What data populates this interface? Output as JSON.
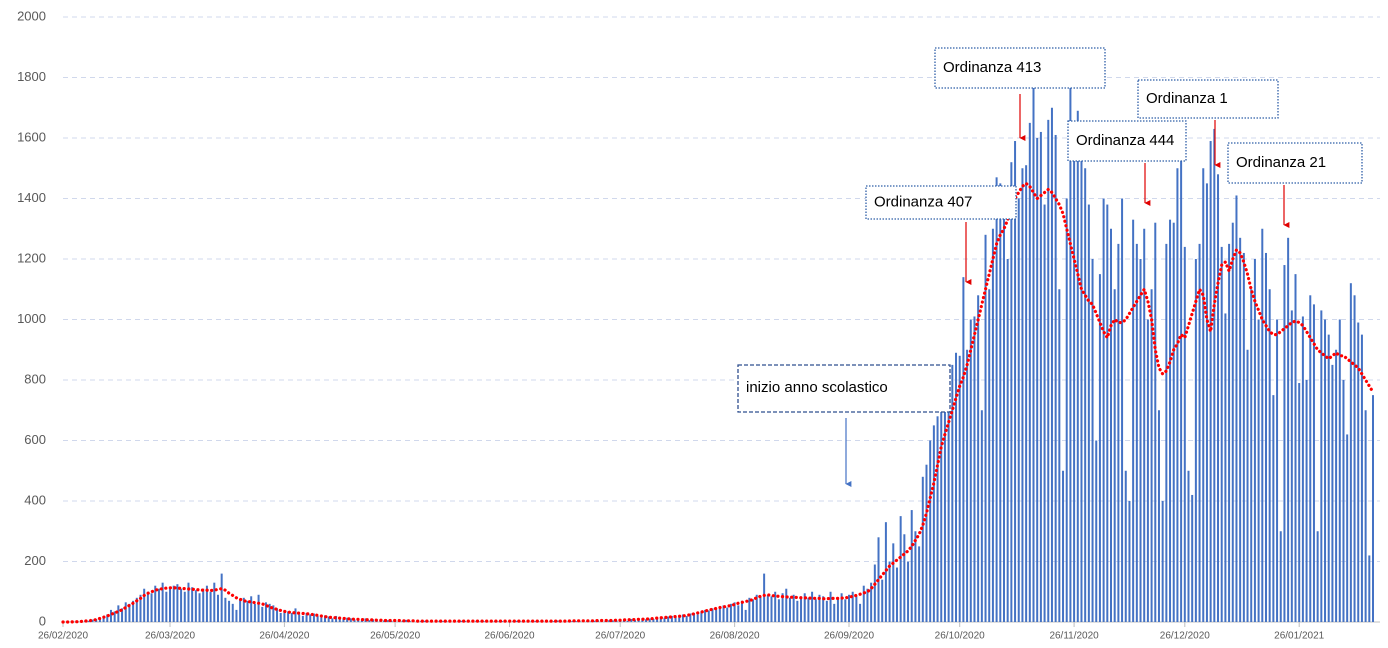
{
  "chart_data": {
    "type": "bar",
    "categories": [
      "26/02/2020",
      null,
      null,
      null,
      null,
      null,
      null,
      null,
      null,
      null,
      null,
      null,
      null,
      null,
      null,
      null,
      null,
      null,
      null,
      null,
      null,
      null,
      null,
      null,
      null,
      null,
      null,
      null,
      null,
      "26/03/2020",
      null,
      null,
      null,
      null,
      null,
      null,
      null,
      null,
      null,
      null,
      null,
      null,
      null,
      null,
      null,
      null,
      null,
      null,
      null,
      null,
      null,
      null,
      null,
      null,
      null,
      null,
      null,
      null,
      null,
      null,
      "26/04/2020",
      null,
      null,
      null,
      null,
      null,
      null,
      null,
      null,
      null,
      null,
      null,
      null,
      null,
      null,
      null,
      null,
      null,
      null,
      null,
      null,
      null,
      null,
      null,
      null,
      null,
      null,
      null,
      null,
      null,
      "26/05/2020",
      null,
      null,
      null,
      null,
      null,
      null,
      null,
      null,
      null,
      null,
      null,
      null,
      null,
      null,
      null,
      null,
      null,
      null,
      null,
      null,
      null,
      null,
      null,
      null,
      null,
      null,
      null,
      null,
      null,
      null,
      "26/06/2020",
      null,
      null,
      null,
      null,
      null,
      null,
      null,
      null,
      null,
      null,
      null,
      null,
      null,
      null,
      null,
      null,
      null,
      null,
      null,
      null,
      null,
      null,
      null,
      null,
      null,
      null,
      null,
      null,
      null,
      "26/07/2020",
      null,
      null,
      null,
      null,
      null,
      null,
      null,
      null,
      null,
      null,
      null,
      null,
      null,
      null,
      null,
      null,
      null,
      null,
      null,
      null,
      null,
      null,
      null,
      null,
      null,
      null,
      null,
      null,
      null,
      null,
      "26/08/2020",
      null,
      null,
      null,
      null,
      null,
      null,
      null,
      null,
      null,
      null,
      null,
      null,
      null,
      null,
      null,
      null,
      null,
      null,
      null,
      null,
      null,
      null,
      null,
      null,
      null,
      null,
      null,
      null,
      null,
      null,
      "26/09/2020",
      null,
      null,
      null,
      null,
      null,
      null,
      null,
      null,
      null,
      null,
      null,
      null,
      null,
      null,
      null,
      null,
      null,
      null,
      null,
      null,
      null,
      null,
      null,
      null,
      null,
      null,
      null,
      null,
      null,
      "26/10/2020",
      null,
      null,
      null,
      null,
      null,
      null,
      null,
      null,
      null,
      null,
      null,
      null,
      null,
      null,
      null,
      null,
      null,
      null,
      null,
      null,
      null,
      null,
      null,
      null,
      null,
      null,
      null,
      null,
      null,
      null,
      "26/11/2020",
      null,
      null,
      null,
      null,
      null,
      null,
      null,
      null,
      null,
      null,
      null,
      null,
      null,
      null,
      null,
      null,
      null,
      null,
      null,
      null,
      null,
      null,
      null,
      null,
      null,
      null,
      null,
      null,
      null,
      "26/12/2020",
      null,
      null,
      null,
      null,
      null,
      null,
      null,
      null,
      null,
      null,
      null,
      null,
      null,
      null,
      null,
      null,
      null,
      null,
      null,
      null,
      null,
      null,
      null,
      null,
      null,
      null,
      null,
      null,
      null,
      null,
      "26/01/2021",
      null,
      null,
      null,
      null,
      null,
      null,
      null,
      null,
      null,
      null,
      null,
      null,
      null,
      null,
      null,
      null,
      null,
      null,
      null,
      null
    ],
    "series": [
      {
        "type": "bar",
        "color": "#4472c4",
        "values": [
          0,
          0,
          0,
          1,
          2,
          3,
          5,
          4,
          8,
          10,
          15,
          20,
          25,
          40,
          35,
          55,
          45,
          65,
          60,
          70,
          80,
          90,
          110,
          100,
          95,
          120,
          110,
          130,
          100,
          115,
          120,
          125,
          110,
          100,
          130,
          115,
          105,
          95,
          110,
          120,
          100,
          130,
          90,
          160,
          80,
          70,
          60,
          40,
          75,
          80,
          70,
          85,
          60,
          90,
          50,
          65,
          60,
          55,
          45,
          30,
          40,
          35,
          30,
          45,
          25,
          20,
          30,
          25,
          28,
          20,
          15,
          22,
          18,
          12,
          20,
          15,
          10,
          14,
          12,
          8,
          10,
          8,
          12,
          6,
          9,
          7,
          8,
          5,
          6,
          4,
          6,
          5,
          4,
          7,
          3,
          5,
          4,
          3,
          4,
          2,
          3,
          2,
          4,
          3,
          2,
          5,
          3,
          2,
          4,
          3,
          2,
          3,
          4,
          2,
          3,
          2,
          5,
          3,
          2,
          3,
          3,
          2,
          3,
          4,
          2,
          3,
          2,
          4,
          3,
          2,
          4,
          3,
          2,
          3,
          5,
          2,
          3,
          4,
          3,
          3,
          3,
          4,
          3,
          2,
          4,
          5,
          3,
          4,
          6,
          5,
          5,
          8,
          6,
          4,
          10,
          7,
          8,
          12,
          9,
          11,
          10,
          12,
          15,
          14,
          18,
          20,
          16,
          22,
          25,
          20,
          28,
          30,
          25,
          35,
          40,
          38,
          45,
          42,
          50,
          55,
          48,
          60,
          65,
          55,
          70,
          40,
          80,
          75,
          90,
          85,
          160,
          90,
          85,
          100,
          75,
          95,
          110,
          80,
          90,
          70,
          85,
          95,
          80,
          100,
          75,
          90,
          85,
          70,
          100,
          60,
          80,
          95,
          75,
          90,
          100,
          85,
          60,
          120,
          110,
          130,
          190,
          280,
          140,
          330,
          200,
          260,
          180,
          350,
          290,
          200,
          370,
          300,
          250,
          480,
          520,
          600,
          650,
          680,
          720,
          700,
          750,
          850,
          890,
          880,
          1140,
          900,
          1000,
          1010,
          1080,
          700,
          1280,
          1100,
          1300,
          1470,
          1450,
          1350,
          1200,
          1520,
          1590,
          1400,
          1500,
          1510,
          1650,
          1850,
          1600,
          1620,
          1380,
          1660,
          1700,
          1610,
          1100,
          500,
          1400,
          1880,
          1610,
          1690,
          1650,
          1500,
          1380,
          1200,
          600,
          1150,
          1400,
          1380,
          1300,
          1100,
          1250,
          1400,
          500,
          400,
          1330,
          1250,
          1200,
          1300,
          1000,
          1100,
          1320,
          700,
          400,
          1250,
          1330,
          1320,
          1500,
          1560,
          1240,
          500,
          420,
          1200,
          1250,
          1500,
          1450,
          1590,
          1630,
          1480,
          1240,
          1020,
          1250,
          1320,
          1410,
          1270,
          1220,
          900,
          1100,
          1200,
          1000,
          1300,
          1220,
          1100,
          750,
          1000,
          300,
          1180,
          1270,
          1030,
          1150,
          790,
          1010,
          800,
          1080,
          1050,
          300,
          1030,
          1000,
          950,
          850,
          900,
          1000,
          800,
          620,
          1120,
          1080,
          990,
          950,
          700,
          220,
          750
        ]
      },
      {
        "type": "line",
        "color": "#ff0000",
        "values": [
          0,
          0,
          0,
          1,
          1,
          2,
          3,
          4,
          6,
          8,
          12,
          16,
          20,
          25,
          30,
          35,
          40,
          48,
          55,
          62,
          70,
          78,
          88,
          95,
          100,
          105,
          108,
          110,
          112,
          113,
          113,
          112,
          111,
          110,
          109,
          108,
          107,
          106,
          105,
          105,
          104,
          105,
          108,
          110,
          105,
          95,
          88,
          80,
          75,
          70,
          68,
          66,
          64,
          62,
          60,
          55,
          50,
          45,
          42,
          38,
          35,
          33,
          31,
          30,
          29,
          28,
          27,
          26,
          24,
          22,
          20,
          18,
          16,
          15,
          14,
          13,
          12,
          11,
          10,
          9,
          9,
          8,
          8,
          7,
          7,
          6,
          6,
          5,
          5,
          5,
          5,
          5,
          4,
          4,
          4,
          4,
          3,
          3,
          3,
          3,
          3,
          3,
          3,
          3,
          3,
          3,
          3,
          3,
          3,
          3,
          3,
          3,
          3,
          3,
          3,
          3,
          3,
          3,
          3,
          3,
          3,
          3,
          3,
          3,
          3,
          3,
          3,
          3,
          3,
          3,
          3,
          3,
          3,
          3,
          3,
          3,
          3,
          3,
          4,
          4,
          4,
          4,
          4,
          4,
          4,
          5,
          5,
          5,
          5,
          5,
          6,
          6,
          7,
          7,
          8,
          8,
          9,
          9,
          10,
          10,
          12,
          13,
          14,
          15,
          16,
          17,
          18,
          19,
          20,
          22,
          24,
          27,
          30,
          33,
          36,
          40,
          42,
          45,
          48,
          50,
          52,
          55,
          58,
          62,
          65,
          68,
          70,
          75,
          80,
          85,
          88,
          90,
          88,
          86,
          85,
          84,
          83,
          82,
          82,
          81,
          80,
          80,
          79,
          79,
          78,
          78,
          77,
          77,
          78,
          78,
          78,
          79,
          80,
          82,
          85,
          88,
          92,
          96,
          100,
          110,
          125,
          140,
          155,
          170,
          185,
          195,
          205,
          215,
          225,
          235,
          250,
          270,
          290,
          320,
          360,
          410,
          460,
          520,
          580,
          620,
          660,
          700,
          740,
          780,
          810,
          850,
          900,
          950,
          1000,
          1050,
          1100,
          1150,
          1200,
          1250,
          1280,
          1300,
          1330,
          1370,
          1400,
          1420,
          1440,
          1450,
          1440,
          1420,
          1400,
          1410,
          1420,
          1430,
          1420,
          1400,
          1380,
          1350,
          1300,
          1250,
          1200,
          1150,
          1100,
          1080,
          1060,
          1050,
          1020,
          990,
          960,
          940,
          980,
          1000,
          990,
          990,
          1000,
          1020,
          1040,
          1060,
          1080,
          1100,
          1060,
          1000,
          900,
          840,
          820,
          830,
          860,
          900,
          920,
          950,
          940,
          980,
          1020,
          1060,
          1100,
          1080,
          1000,
          960,
          1050,
          1120,
          1180,
          1190,
          1160,
          1200,
          1230,
          1220,
          1190,
          1150,
          1100,
          1060,
          1030,
          1000,
          980,
          960,
          950,
          950,
          960,
          970,
          980,
          990,
          995,
          990,
          980,
          960,
          940,
          920,
          900,
          890,
          880,
          870,
          880,
          890,
          880,
          880,
          870,
          860,
          850,
          840,
          820,
          800,
          780,
          760
        ]
      }
    ],
    "ylim": [
      0,
      2000
    ],
    "yticks": [
      0,
      200,
      400,
      600,
      800,
      1000,
      1200,
      1400,
      1600,
      1800,
      2000
    ],
    "grid": true,
    "annotations": [
      {
        "text": "Ordinanza 413"
      },
      {
        "text": "Ordinanza 407"
      },
      {
        "text": "Ordinanza 444"
      },
      {
        "text": "Ordinanza 1"
      },
      {
        "text": "Ordinanza 21"
      },
      {
        "text": "inizio anno scolastico"
      }
    ]
  }
}
